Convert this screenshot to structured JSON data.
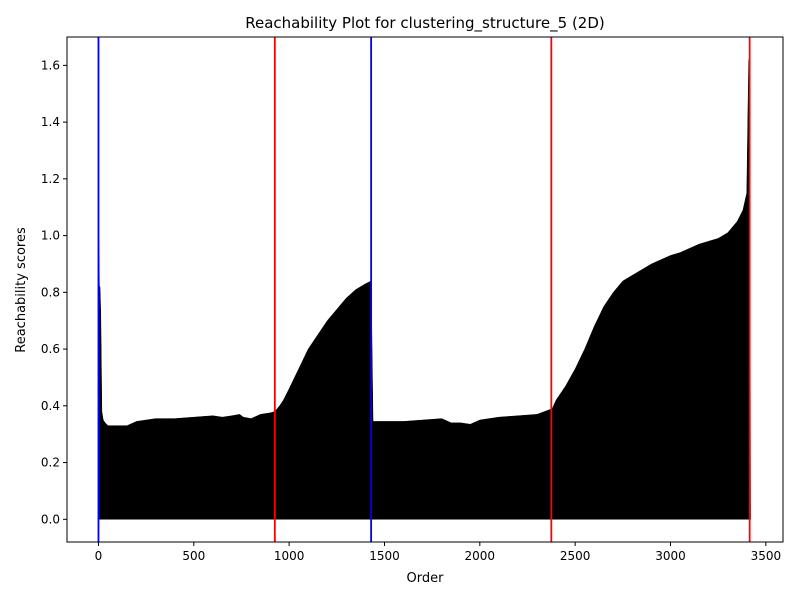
{
  "chart_data": {
    "type": "area",
    "title": "Reachability Plot for clustering_structure_5 (2D)",
    "xlabel": "Order",
    "ylabel": "Reachability scores",
    "xlim": [
      -165,
      3590
    ],
    "ylim": [
      -0.08,
      1.7
    ],
    "x_ticks": [
      0,
      500,
      1000,
      1500,
      2000,
      2500,
      3000,
      3500
    ],
    "y_ticks": [
      0.0,
      0.2,
      0.4,
      0.6,
      0.8,
      1.0,
      1.2,
      1.4,
      1.6
    ],
    "grid": false,
    "series": [
      {
        "color": "#000000",
        "x": [
          0,
          5,
          8,
          12,
          18,
          25,
          35,
          50,
          80,
          150,
          200,
          250,
          300,
          400,
          500,
          600,
          650,
          700,
          740,
          760,
          800,
          850,
          900,
          925,
          950,
          970,
          1000,
          1050,
          1100,
          1150,
          1200,
          1250,
          1300,
          1350,
          1400,
          1430,
          1440,
          1460,
          1500,
          1600,
          1700,
          1800,
          1850,
          1900,
          1950,
          2000,
          2100,
          2200,
          2300,
          2380,
          2400,
          2450,
          2500,
          2550,
          2600,
          2650,
          2700,
          2750,
          2800,
          2850,
          2900,
          2950,
          3000,
          3050,
          3100,
          3150,
          3200,
          3250,
          3300,
          3350,
          3380,
          3400,
          3410,
          3415,
          3420
        ],
        "values": [
          1.1,
          0.82,
          0.82,
          0.73,
          0.38,
          0.35,
          0.34,
          0.33,
          0.33,
          0.33,
          0.345,
          0.35,
          0.355,
          0.355,
          0.36,
          0.365,
          0.36,
          0.365,
          0.37,
          0.36,
          0.355,
          0.37,
          0.375,
          0.38,
          0.4,
          0.42,
          0.46,
          0.53,
          0.6,
          0.65,
          0.7,
          0.74,
          0.78,
          0.81,
          0.83,
          0.84,
          0.345,
          0.345,
          0.345,
          0.345,
          0.35,
          0.355,
          0.34,
          0.34,
          0.335,
          0.35,
          0.36,
          0.365,
          0.37,
          0.39,
          0.42,
          0.47,
          0.53,
          0.6,
          0.68,
          0.75,
          0.8,
          0.84,
          0.86,
          0.88,
          0.9,
          0.915,
          0.93,
          0.94,
          0.955,
          0.97,
          0.98,
          0.99,
          1.01,
          1.05,
          1.09,
          1.15,
          1.62,
          1.62,
          0.0
        ]
      }
    ],
    "vertical_lines": [
      {
        "x": 0,
        "color": "#0000ff"
      },
      {
        "x": 925,
        "color": "#ff0000"
      },
      {
        "x": 1430,
        "color": "#0000ff"
      },
      {
        "x": 2375,
        "color": "#ff0000"
      },
      {
        "x": 3415,
        "color": "#ff0000"
      }
    ]
  }
}
